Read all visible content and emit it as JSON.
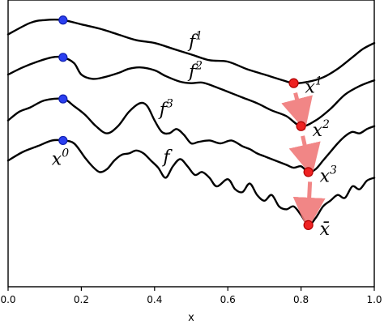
{
  "chart_data": {
    "type": "line",
    "title": "",
    "xlabel": "x",
    "ylabel": "",
    "xlim": [
      0.0,
      1.0
    ],
    "x_ticks": [
      "0.0",
      "0.2",
      "0.4",
      "0.6",
      "0.8",
      "1.0"
    ],
    "x_tick_values": [
      0.0,
      0.2,
      0.4,
      0.6,
      0.8,
      1.0
    ],
    "grid": false,
    "legend": "none",
    "colors": {
      "line": "#000000",
      "start_point": "#2b3ff0",
      "minimum_point": "#ee2222",
      "arrow": "#f07a7a"
    },
    "series": [
      {
        "label_base": "f",
        "label_sup": "1",
        "label_x": 0.48,
        "points": [
          [
            0.0,
            0.12
          ],
          [
            0.06,
            0.08
          ],
          [
            0.1,
            0.07
          ],
          [
            0.15,
            0.07
          ],
          [
            0.2,
            0.085
          ],
          [
            0.25,
            0.1
          ],
          [
            0.3,
            0.12
          ],
          [
            0.35,
            0.14
          ],
          [
            0.4,
            0.15
          ],
          [
            0.45,
            0.17
          ],
          [
            0.5,
            0.19
          ],
          [
            0.55,
            0.21
          ],
          [
            0.6,
            0.215
          ],
          [
            0.65,
            0.24
          ],
          [
            0.7,
            0.26
          ],
          [
            0.75,
            0.28
          ],
          [
            0.78,
            0.29
          ],
          [
            0.82,
            0.285
          ],
          [
            0.86,
            0.27
          ],
          [
            0.9,
            0.24
          ],
          [
            0.94,
            0.2
          ],
          [
            0.97,
            0.17
          ],
          [
            1.0,
            0.15
          ]
        ],
        "start": {
          "x": 0.15,
          "label": ""
        },
        "minimum": {
          "x": 0.78,
          "label_base": "x",
          "label_sup": "1"
        }
      },
      {
        "label_base": "f",
        "label_sup": "2",
        "label_x": 0.48,
        "points": [
          [
            0.0,
            0.26
          ],
          [
            0.04,
            0.235
          ],
          [
            0.08,
            0.215
          ],
          [
            0.12,
            0.2
          ],
          [
            0.15,
            0.2
          ],
          [
            0.18,
            0.22
          ],
          [
            0.2,
            0.26
          ],
          [
            0.23,
            0.275
          ],
          [
            0.26,
            0.27
          ],
          [
            0.3,
            0.255
          ],
          [
            0.33,
            0.24
          ],
          [
            0.36,
            0.235
          ],
          [
            0.4,
            0.245
          ],
          [
            0.43,
            0.265
          ],
          [
            0.47,
            0.285
          ],
          [
            0.5,
            0.29
          ],
          [
            0.53,
            0.288
          ],
          [
            0.56,
            0.3
          ],
          [
            0.6,
            0.32
          ],
          [
            0.64,
            0.34
          ],
          [
            0.68,
            0.36
          ],
          [
            0.72,
            0.385
          ],
          [
            0.76,
            0.405
          ],
          [
            0.8,
            0.44
          ],
          [
            0.84,
            0.42
          ],
          [
            0.88,
            0.38
          ],
          [
            0.92,
            0.33
          ],
          [
            0.96,
            0.3
          ],
          [
            1.0,
            0.28
          ]
        ],
        "start": {
          "x": 0.15,
          "label": ""
        },
        "minimum": {
          "x": 0.8,
          "label_base": "x",
          "label_sup": "2"
        }
      },
      {
        "label_base": "f",
        "label_sup": "3",
        "label_x": 0.4,
        "points": [
          [
            0.0,
            0.42
          ],
          [
            0.03,
            0.39
          ],
          [
            0.06,
            0.375
          ],
          [
            0.1,
            0.35
          ],
          [
            0.15,
            0.345
          ],
          [
            0.18,
            0.37
          ],
          [
            0.21,
            0.4
          ],
          [
            0.24,
            0.44
          ],
          [
            0.27,
            0.465
          ],
          [
            0.3,
            0.44
          ],
          [
            0.33,
            0.39
          ],
          [
            0.36,
            0.36
          ],
          [
            0.38,
            0.37
          ],
          [
            0.4,
            0.42
          ],
          [
            0.42,
            0.46
          ],
          [
            0.44,
            0.465
          ],
          [
            0.46,
            0.45
          ],
          [
            0.48,
            0.47
          ],
          [
            0.5,
            0.5
          ],
          [
            0.52,
            0.495
          ],
          [
            0.55,
            0.49
          ],
          [
            0.58,
            0.5
          ],
          [
            0.61,
            0.49
          ],
          [
            0.64,
            0.51
          ],
          [
            0.66,
            0.52
          ],
          [
            0.68,
            0.535
          ],
          [
            0.7,
            0.545
          ],
          [
            0.72,
            0.555
          ],
          [
            0.74,
            0.565
          ],
          [
            0.76,
            0.575
          ],
          [
            0.78,
            0.585
          ],
          [
            0.8,
            0.58
          ],
          [
            0.82,
            0.6
          ],
          [
            0.84,
            0.59
          ],
          [
            0.86,
            0.56
          ],
          [
            0.88,
            0.53
          ],
          [
            0.9,
            0.5
          ],
          [
            0.92,
            0.475
          ],
          [
            0.94,
            0.46
          ],
          [
            0.96,
            0.465
          ],
          [
            0.98,
            0.45
          ],
          [
            1.0,
            0.44
          ]
        ],
        "start": {
          "x": 0.15,
          "label": ""
        },
        "minimum": {
          "x": 0.82,
          "label_base": "x",
          "label_sup": "3"
        }
      },
      {
        "label_base": "f",
        "label_sup": "",
        "label_x": 0.41,
        "points": [
          [
            0.0,
            0.56
          ],
          [
            0.04,
            0.53
          ],
          [
            0.08,
            0.51
          ],
          [
            0.12,
            0.49
          ],
          [
            0.15,
            0.49
          ],
          [
            0.18,
            0.5
          ],
          [
            0.21,
            0.55
          ],
          [
            0.23,
            0.58
          ],
          [
            0.25,
            0.6
          ],
          [
            0.27,
            0.59
          ],
          [
            0.29,
            0.56
          ],
          [
            0.31,
            0.54
          ],
          [
            0.33,
            0.535
          ],
          [
            0.35,
            0.525
          ],
          [
            0.37,
            0.535
          ],
          [
            0.39,
            0.56
          ],
          [
            0.41,
            0.585
          ],
          [
            0.43,
            0.62
          ],
          [
            0.45,
            0.58
          ],
          [
            0.47,
            0.555
          ],
          [
            0.49,
            0.58
          ],
          [
            0.51,
            0.61
          ],
          [
            0.53,
            0.6
          ],
          [
            0.55,
            0.62
          ],
          [
            0.57,
            0.65
          ],
          [
            0.6,
            0.625
          ],
          [
            0.62,
            0.66
          ],
          [
            0.64,
            0.67
          ],
          [
            0.66,
            0.64
          ],
          [
            0.68,
            0.68
          ],
          [
            0.7,
            0.7
          ],
          [
            0.72,
            0.68
          ],
          [
            0.74,
            0.72
          ],
          [
            0.76,
            0.73
          ],
          [
            0.78,
            0.72
          ],
          [
            0.8,
            0.75
          ],
          [
            0.82,
            0.785
          ],
          [
            0.84,
            0.76
          ],
          [
            0.86,
            0.72
          ],
          [
            0.88,
            0.7
          ],
          [
            0.9,
            0.68
          ],
          [
            0.92,
            0.69
          ],
          [
            0.94,
            0.65
          ],
          [
            0.96,
            0.66
          ],
          [
            0.98,
            0.63
          ],
          [
            1.0,
            0.62
          ]
        ],
        "start": {
          "x": 0.15,
          "label_base": "x",
          "label_sup": "0"
        },
        "minimum": {
          "x": 0.82,
          "label_base": "x̄",
          "label_sup": ""
        }
      }
    ]
  }
}
